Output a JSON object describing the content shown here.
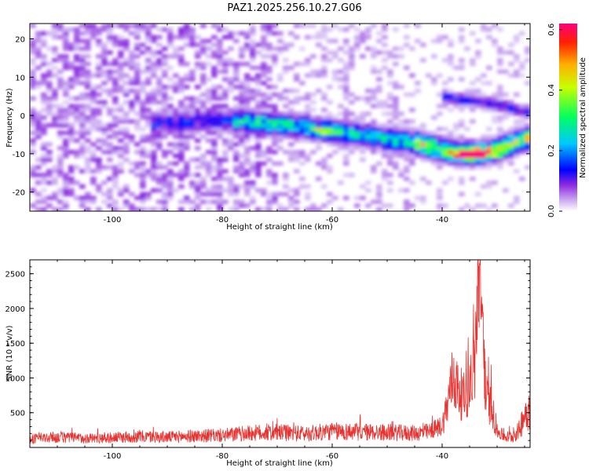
{
  "title": "PAZ1.2025.256.10.27.G06",
  "chart_data": [
    {
      "type": "heatmap",
      "xlabel": "Height of straight line (km)",
      "ylabel": "Frequency (Hz)",
      "xlim": [
        -115,
        -24
      ],
      "ylim": [
        -25,
        24
      ],
      "x_ticks": [
        -100,
        -80,
        -60,
        -40
      ],
      "y_ticks": [
        -20,
        -10,
        0,
        10,
        20
      ],
      "colorbar": {
        "label": "Normalized spectral amplitude",
        "range": [
          0.0,
          0.62
        ],
        "ticks": [
          "0.0",
          "0.2",
          "0.4",
          "0.6"
        ]
      },
      "ridge": {
        "description_points_x": [
          -90,
          -80,
          -72,
          -65,
          -60,
          -55,
          -50,
          -45,
          -40,
          -35,
          -30,
          -25
        ],
        "description_points_y": [
          -2,
          -1,
          -2,
          -3,
          -4,
          -5,
          -6,
          -7,
          -9,
          -10,
          -9,
          -6
        ],
        "peak_amplitude": 0.6,
        "secondary_branch_x": [
          -40,
          -35,
          -30,
          -25
        ],
        "secondary_branch_y": [
          5,
          4,
          3,
          1
        ]
      },
      "grid": false
    },
    {
      "type": "line",
      "xlabel": "Height of straight line (km)",
      "ylabel": "SNR (10 * v/v)",
      "xlim": [
        -115,
        -24
      ],
      "ylim": [
        0,
        2700
      ],
      "x_ticks": [
        -100,
        -80,
        -60,
        -40
      ],
      "y_ticks": [
        500,
        1000,
        1500,
        2000,
        2500
      ],
      "series": [
        {
          "color": "#e8322f",
          "x": [
            -115,
            -110,
            -105,
            -100,
            -95,
            -90,
            -85,
            -80,
            -75,
            -70,
            -65,
            -60,
            -55,
            -50,
            -45,
            -42,
            -40,
            -39,
            -38,
            -37,
            -36,
            -35,
            -34,
            -33.5,
            -33,
            -32.5,
            -32,
            -31,
            -30,
            -29,
            -28,
            -27,
            -26,
            -25,
            -24
          ],
          "y": [
            150,
            180,
            160,
            170,
            190,
            180,
            200,
            210,
            250,
            260,
            240,
            280,
            270,
            260,
            250,
            270,
            350,
            700,
            1150,
            900,
            800,
            1000,
            1400,
            2650,
            2300,
            1700,
            800,
            650,
            250,
            200,
            180,
            200,
            300,
            600,
            700
          ]
        }
      ],
      "grid": false
    }
  ],
  "colors": {
    "series_line": "#e8322f",
    "colormap": [
      "#ffffff",
      "#c9a8f0",
      "#8c2be0",
      "#5a00ff",
      "#0000ff",
      "#00c8ff",
      "#00ff60",
      "#ffff00",
      "#ff3000",
      "#ff0080"
    ]
  }
}
